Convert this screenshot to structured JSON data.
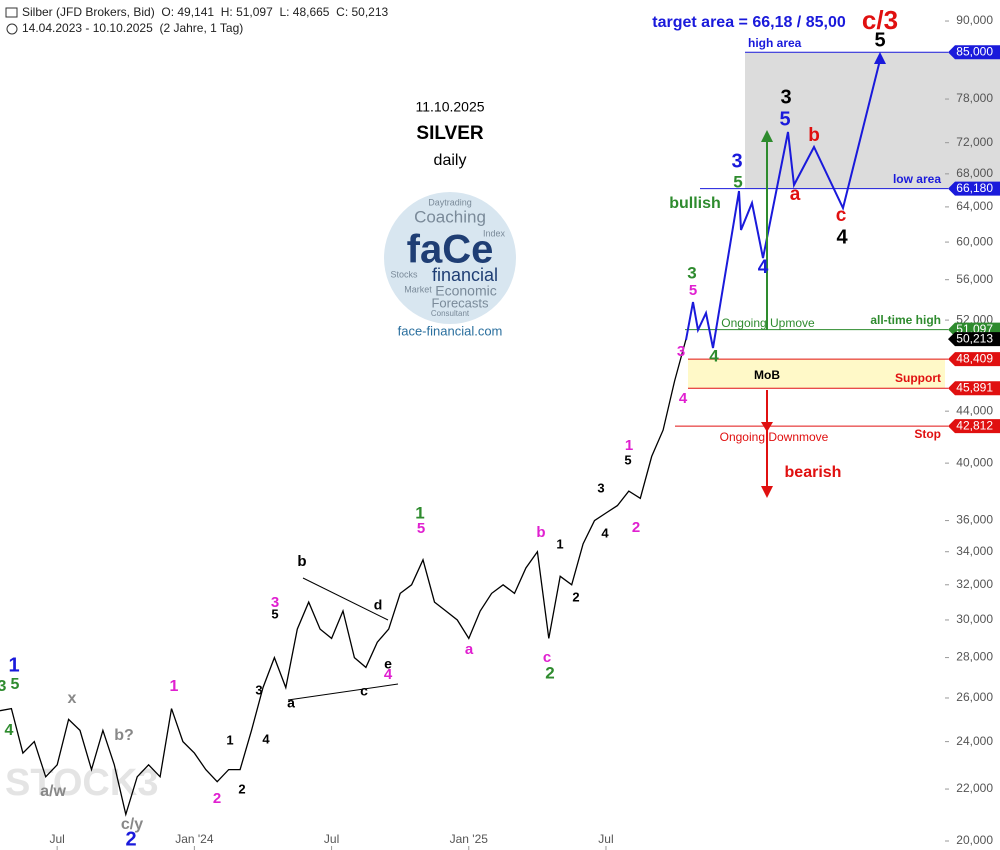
{
  "chart_data": {
    "type": "line",
    "header": "Silber (JFD Brokers, Bid)  O: 49,141  H: 51,097  L: 48,665  C: 50,213",
    "period": "14.04.2023 - 10.10.2025  (2 Jahre, 1 Tag)",
    "date": "11.10.2025",
    "title": "SILVER",
    "subtitle": "daily",
    "logo": [
      "Daytrading",
      "Coaching",
      "Index",
      "faCe",
      "Stocks",
      "Market",
      "financial",
      "Economic",
      "Forecasts",
      "Consultant"
    ],
    "website": "face-financial.com",
    "watermark": "STOCK3",
    "log_scale": true,
    "categories": [
      null,
      null,
      null,
      null,
      null,
      "Jul",
      null,
      null,
      null,
      null,
      null,
      null,
      null,
      null,
      null,
      null,
      null,
      "Jan '24",
      null,
      null,
      null,
      null,
      null,
      null,
      null,
      null,
      null,
      null,
      null,
      "Jul",
      null,
      null,
      null,
      null,
      null,
      null,
      null,
      null,
      null,
      null,
      null,
      "Jan '25",
      null,
      null,
      null,
      null,
      null,
      null,
      null,
      null,
      null,
      null,
      null,
      "Jul",
      null,
      null,
      null,
      null,
      null,
      null,
      null
    ],
    "series": [
      {
        "name": "Silber",
        "color": "#000000",
        "values": [
          25400,
          25500,
          23500,
          24000,
          22500,
          23000,
          25000,
          24500,
          22800,
          24500,
          23000,
          21000,
          22500,
          23000,
          22500,
          25500,
          24000,
          23500,
          22800,
          22300,
          22800,
          22800,
          24500,
          26500,
          28000,
          26500,
          29500,
          31000,
          29500,
          29000,
          30500,
          28000,
          27500,
          28800,
          29500,
          31500,
          32000,
          33500,
          31000,
          30500,
          30000,
          29000,
          30500,
          31500,
          32000,
          31500,
          33000,
          34000,
          29000,
          32500,
          32000,
          34500,
          36000,
          36500,
          37000,
          38000,
          37500,
          40500,
          42500,
          46500,
          50213
        ]
      }
    ],
    "ylim": [
      19673,
      93540
    ],
    "yticks": [
      {
        "value": 20000,
        "label": "20,000"
      },
      {
        "value": 22000,
        "label": "22,000"
      },
      {
        "value": 24000,
        "label": "24,000"
      },
      {
        "value": 26000,
        "label": "26,000"
      },
      {
        "value": 28000,
        "label": "28,000"
      },
      {
        "value": 30000,
        "label": "30,000"
      },
      {
        "value": 32000,
        "label": "32,000"
      },
      {
        "value": 34000,
        "label": "34,000"
      },
      {
        "value": 36000,
        "label": "36,000"
      },
      {
        "value": 40000,
        "label": "40,000"
      },
      {
        "value": 44000,
        "label": "44,000"
      },
      {
        "value": 52000,
        "label": "52,000"
      },
      {
        "value": 56000,
        "label": "56,000"
      },
      {
        "value": 60000,
        "label": "60,000"
      },
      {
        "value": 64000,
        "label": "64,000"
      },
      {
        "value": 68000,
        "label": "68,000"
      },
      {
        "value": 72000,
        "label": "72,000"
      },
      {
        "value": 78000,
        "label": "78,000"
      },
      {
        "value": 90000,
        "label": "90,000"
      }
    ],
    "levels": [
      {
        "value": 85000,
        "label": "85,000",
        "color": "#1a1adb",
        "text": "high area"
      },
      {
        "value": 66180,
        "label": "66,180",
        "color": "#1a1adb",
        "text": "low area"
      },
      {
        "value": 51097,
        "label": "51,097",
        "color": "#2e8b2e",
        "text": "all-time high"
      },
      {
        "value": 50213,
        "label": "50,213",
        "color": "#000000"
      },
      {
        "value": 48409,
        "label": "48,409",
        "color": "#e01010"
      },
      {
        "value": 45891,
        "label": "45,891",
        "color": "#e01010",
        "text": "Support"
      },
      {
        "value": 42812,
        "label": "42,812",
        "color": "#e01010",
        "text": "Stop"
      }
    ],
    "annotations": [
      {
        "text": "3",
        "color": "#2e8b2e"
      },
      {
        "text": "1",
        "color": "#1a1adb"
      },
      {
        "text": "5",
        "color": "#2e8b2e"
      },
      {
        "text": "4",
        "color": "#2e8b2e"
      },
      {
        "text": "x",
        "color": "#888888"
      },
      {
        "text": "b?",
        "color": "#888888"
      },
      {
        "text": "a/w",
        "color": "#888888"
      },
      {
        "text": "c/y",
        "color": "#888888"
      },
      {
        "text": "2",
        "color": "#1a1adb"
      },
      {
        "text": "1",
        "color": "#e020d0"
      },
      {
        "text": "2",
        "color": "#e020d0"
      },
      {
        "text": "1",
        "color": "#000000"
      },
      {
        "text": "2",
        "color": "#000000"
      },
      {
        "text": "3",
        "color": "#000000"
      },
      {
        "text": "4",
        "color": "#000000"
      },
      {
        "text": "3",
        "color": "#e020d0"
      },
      {
        "text": "5",
        "color": "#000000"
      },
      {
        "text": "b",
        "color": "#000000"
      },
      {
        "text": "a",
        "color": "#000000"
      },
      {
        "text": "c",
        "color": "#000000"
      },
      {
        "text": "d",
        "color": "#000000"
      },
      {
        "text": "e",
        "color": "#000000"
      },
      {
        "text": "4",
        "color": "#e020d0"
      },
      {
        "text": "1",
        "color": "#2e8b2e"
      },
      {
        "text": "5",
        "color": "#e020d0"
      },
      {
        "text": "a",
        "color": "#e020d0"
      },
      {
        "text": "b",
        "color": "#e020d0"
      },
      {
        "text": "c",
        "color": "#e020d0"
      },
      {
        "text": "2",
        "color": "#2e8b2e"
      },
      {
        "text": "1",
        "color": "#000000"
      },
      {
        "text": "2",
        "color": "#000000"
      },
      {
        "text": "3",
        "color": "#000000"
      },
      {
        "text": "4",
        "color": "#000000"
      },
      {
        "text": "1",
        "color": "#e020d0"
      },
      {
        "text": "5",
        "color": "#000000"
      },
      {
        "text": "2",
        "color": "#e020d0"
      },
      {
        "text": "3",
        "color": "#e020d0"
      },
      {
        "text": "4",
        "color": "#e020d0"
      },
      {
        "text": "3",
        "color": "#2e8b2e"
      },
      {
        "text": "5",
        "color": "#e020d0"
      },
      {
        "text": "4",
        "color": "#2e8b2e"
      },
      {
        "text": "3",
        "color": "#1a1adb"
      },
      {
        "text": "5",
        "color": "#2e8b2e"
      },
      {
        "text": "4",
        "color": "#1a1adb"
      },
      {
        "text": "3",
        "color": "#000000"
      },
      {
        "text": "5",
        "color": "#1a1adb"
      },
      {
        "text": "b",
        "color": "#e01010"
      },
      {
        "text": "a",
        "color": "#e01010"
      },
      {
        "text": "c",
        "color": "#e01010"
      },
      {
        "text": "4",
        "color": "#000000"
      },
      {
        "text": "5",
        "color": "#000000"
      },
      {
        "text": "c/3",
        "color": "#e01010"
      },
      {
        "text": "bullish",
        "color": "#2e8b2e"
      },
      {
        "text": "bearish",
        "color": "#e01010"
      },
      {
        "text": "Ongoing Upmove",
        "color": "#2e8b2e"
      },
      {
        "text": "Ongoing Downmove",
        "color": "#e01010"
      },
      {
        "text": "MoB",
        "color": "#000000"
      },
      {
        "text": "target area = 66,18 / 85,00",
        "color": "#1a1adb"
      }
    ]
  }
}
